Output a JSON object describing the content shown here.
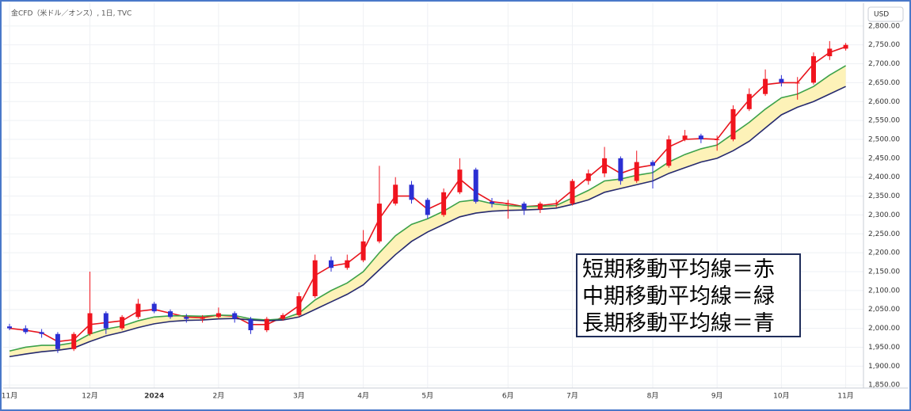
{
  "chart_data": {
    "type": "candlestick",
    "title": "金CFD（米ドル／オンス）, 1日, TVC",
    "currency": "USD",
    "annotations": [
      "短期移動平均線＝赤",
      "中期移動平均線＝緑",
      "長期移動平均線＝青"
    ],
    "categories": [
      "11月",
      null,
      null,
      null,
      null,
      "12月",
      null,
      null,
      null,
      "2024",
      null,
      null,
      null,
      "2月",
      null,
      null,
      null,
      null,
      "3月",
      null,
      null,
      null,
      "4月",
      null,
      null,
      null,
      "5月",
      null,
      null,
      null,
      null,
      "6月",
      null,
      null,
      null,
      "7月",
      null,
      null,
      null,
      null,
      "8月",
      null,
      null,
      null,
      "9月",
      null,
      null,
      null,
      "10月",
      null,
      null,
      null,
      "11月"
    ],
    "open": [
      2005,
      2000,
      1990,
      1985,
      1945,
      1985,
      2040,
      2000,
      2030,
      2065,
      2045,
      2030,
      2025,
      2030,
      2040,
      2025,
      1995,
      2025,
      2035,
      2085,
      2180,
      2160,
      2180,
      2230,
      2330,
      2380,
      2340,
      2300,
      2360,
      2420,
      2335,
      2330,
      2330,
      2315,
      2330,
      2330,
      2390,
      2410,
      2450,
      2390,
      2440,
      2430,
      2500,
      2510,
      2500,
      2500,
      2580,
      2620,
      2660,
      2650,
      2650,
      2720,
      2740
    ],
    "high": [
      2012,
      2008,
      1998,
      1990,
      1990,
      2150,
      2045,
      2035,
      2078,
      2070,
      2050,
      2038,
      2035,
      2055,
      2045,
      2030,
      2030,
      2040,
      2095,
      2195,
      2190,
      2195,
      2260,
      2430,
      2400,
      2390,
      2345,
      2370,
      2450,
      2425,
      2345,
      2340,
      2335,
      2335,
      2340,
      2395,
      2420,
      2480,
      2455,
      2470,
      2445,
      2510,
      2525,
      2515,
      2510,
      2590,
      2635,
      2685,
      2670,
      2665,
      2730,
      2760,
      2755
    ],
    "low": [
      1995,
      1985,
      1975,
      1935,
      1940,
      1980,
      1985,
      1995,
      2025,
      2040,
      2025,
      2015,
      2015,
      2025,
      2015,
      1985,
      1990,
      2020,
      2030,
      2080,
      2150,
      2155,
      2175,
      2225,
      2325,
      2330,
      2290,
      2295,
      2355,
      2330,
      2320,
      2290,
      2300,
      2305,
      2320,
      2325,
      2380,
      2400,
      2380,
      2385,
      2370,
      2425,
      2495,
      2490,
      2470,
      2495,
      2575,
      2615,
      2640,
      2605,
      2645,
      2710,
      2735
    ],
    "close": [
      2000,
      1990,
      1985,
      1945,
      1985,
      2040,
      2000,
      2030,
      2065,
      2045,
      2030,
      2025,
      2030,
      2040,
      2025,
      1995,
      2025,
      2035,
      2085,
      2180,
      2160,
      2180,
      2230,
      2330,
      2380,
      2340,
      2300,
      2360,
      2420,
      2335,
      2330,
      2330,
      2315,
      2330,
      2330,
      2390,
      2410,
      2450,
      2390,
      2440,
      2430,
      2500,
      2510,
      2500,
      2500,
      2580,
      2620,
      2660,
      2650,
      2650,
      2720,
      2740,
      2750
    ],
    "up_color": "#f0141e",
    "down_color": "#2b2fd3",
    "band_color": "#fdf2b8",
    "series": [
      {
        "color": "#e8141c",
        "values": [
          2000,
          1995,
          1988,
          1965,
          1970,
          2010,
          2015,
          2020,
          2045,
          2050,
          2040,
          2030,
          2028,
          2035,
          2032,
          2010,
          2010,
          2030,
          2060,
          2140,
          2165,
          2172,
          2205,
          2290,
          2350,
          2350,
          2315,
          2335,
          2395,
          2360,
          2335,
          2330,
          2322,
          2325,
          2330,
          2365,
          2400,
          2435,
          2410,
          2425,
          2432,
          2480,
          2500,
          2502,
          2500,
          2555,
          2605,
          2645,
          2650,
          2650,
          2700,
          2730,
          2745
        ]
      },
      {
        "color": "#3da24a",
        "values": [
          1940,
          1950,
          1955,
          1955,
          1962,
          1985,
          1998,
          2006,
          2020,
          2030,
          2033,
          2033,
          2032,
          2035,
          2034,
          2025,
          2022,
          2025,
          2040,
          2075,
          2100,
          2120,
          2150,
          2200,
          2245,
          2275,
          2290,
          2310,
          2335,
          2340,
          2330,
          2325,
          2322,
          2323,
          2325,
          2345,
          2365,
          2390,
          2395,
          2405,
          2412,
          2440,
          2460,
          2475,
          2485,
          2515,
          2545,
          2580,
          2610,
          2620,
          2640,
          2670,
          2695
        ]
      },
      {
        "color": "#262a6e",
        "values": [
          1925,
          1932,
          1938,
          1942,
          1948,
          1965,
          1980,
          1990,
          2002,
          2012,
          2018,
          2021,
          2022,
          2025,
          2026,
          2022,
          2020,
          2022,
          2030,
          2050,
          2070,
          2090,
          2115,
          2155,
          2195,
          2230,
          2255,
          2275,
          2295,
          2305,
          2310,
          2312,
          2313,
          2315,
          2318,
          2328,
          2340,
          2360,
          2370,
          2380,
          2390,
          2410,
          2425,
          2440,
          2450,
          2470,
          2495,
          2530,
          2565,
          2585,
          2600,
          2620,
          2640
        ]
      }
    ],
    "ylim": [
      1842,
      2852
    ],
    "yticks": [
      {
        "value": 1850,
        "label": "1,850.00"
      },
      {
        "value": 1900,
        "label": "1,900.00"
      },
      {
        "value": 1950,
        "label": "1,950.00"
      },
      {
        "value": 2000,
        "label": "2,000.00"
      },
      {
        "value": 2050,
        "label": "2,050.00"
      },
      {
        "value": 2100,
        "label": "2,100.00"
      },
      {
        "value": 2150,
        "label": "2,150.00"
      },
      {
        "value": 2200,
        "label": "2,200.00"
      },
      {
        "value": 2250,
        "label": "2,250.00"
      },
      {
        "value": 2300,
        "label": "2,300.00"
      },
      {
        "value": 2350,
        "label": "2,350.00"
      },
      {
        "value": 2400,
        "label": "2,400.00"
      },
      {
        "value": 2450,
        "label": "2,450.00"
      },
      {
        "value": 2500,
        "label": "2,500.00"
      },
      {
        "value": 2550,
        "label": "2,550.00"
      },
      {
        "value": 2600,
        "label": "2,600.00"
      },
      {
        "value": 2650,
        "label": "2,650.00"
      },
      {
        "value": 2700,
        "label": "2,700.00"
      },
      {
        "value": 2750,
        "label": "2,750.00"
      },
      {
        "value": 2800,
        "label": "2,800.00"
      }
    ],
    "grid": true
  }
}
